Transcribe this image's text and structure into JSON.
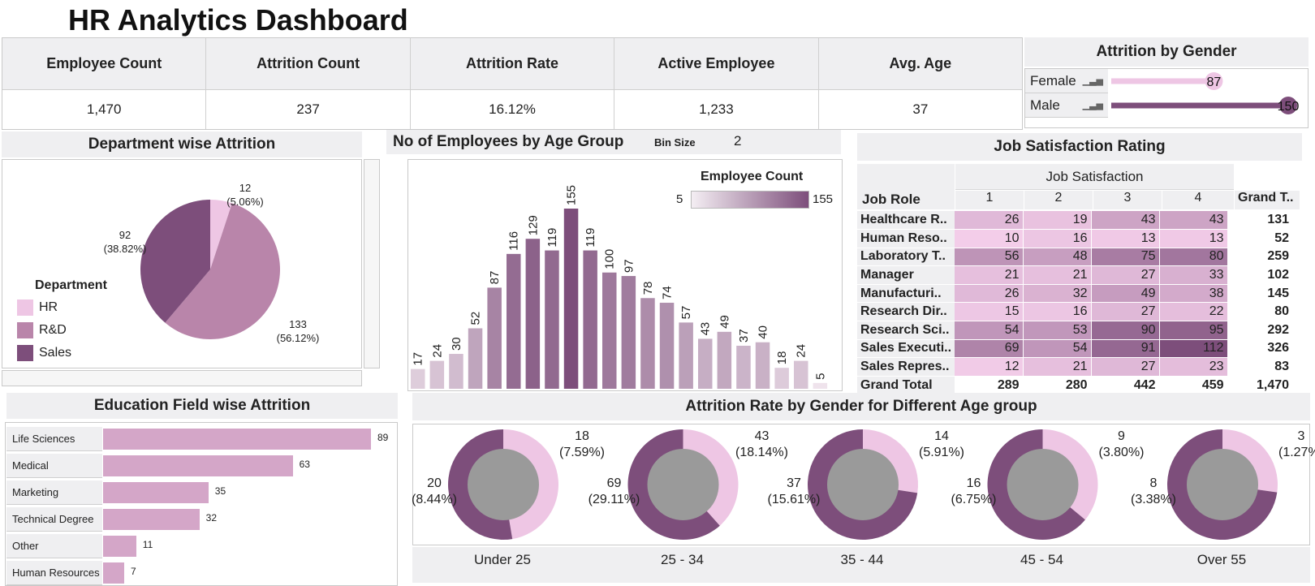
{
  "title": "HR Analytics Dashboard",
  "kpis": [
    {
      "label": "Employee Count",
      "value": "1,470"
    },
    {
      "label": "Attrition Count",
      "value": "237"
    },
    {
      "label": "Attrition Rate",
      "value": "16.12%"
    },
    {
      "label": "Active Employee",
      "value": "1,233"
    },
    {
      "label": "Avg. Age",
      "value": "37"
    }
  ],
  "gender_attrition": {
    "title": "Attrition by Gender",
    "rows": [
      {
        "label": "Female",
        "value": 87,
        "color": "#eec6e4"
      },
      {
        "label": "Male",
        "value": 150,
        "color": "#7d4e7b"
      }
    ],
    "max": 150
  },
  "department": {
    "title": "Department wise Attrition",
    "legend_title": "Department",
    "slices": [
      {
        "name": "HR",
        "value": 12,
        "pct": "(5.06%)",
        "color": "#eec6e4"
      },
      {
        "name": "R&D",
        "value": 133,
        "pct": "(56.12%)",
        "color": "#b985aa"
      },
      {
        "name": "Sales",
        "value": 92,
        "pct": "(38.82%)",
        "color": "#7d4e7b"
      }
    ]
  },
  "age_group": {
    "title": "No of Employees by Age Group",
    "bin_label": "Bin Size",
    "bin_value": "2",
    "legend_title": "Employee Count",
    "legend_min": "5",
    "legend_max": "155",
    "values": [
      17,
      24,
      30,
      52,
      87,
      116,
      129,
      119,
      155,
      119,
      100,
      97,
      78,
      74,
      57,
      43,
      49,
      37,
      40,
      18,
      24,
      5
    ]
  },
  "job_satisfaction": {
    "title": "Job Satisfaction Rating",
    "col_group": "Job Satisfaction",
    "row_header": "Job Role",
    "columns": [
      "1",
      "2",
      "3",
      "4"
    ],
    "grand_header": "Grand T..",
    "rows": [
      {
        "role": "Healthcare R..",
        "values": [
          26,
          19,
          43,
          43
        ],
        "total": "131"
      },
      {
        "role": "Human Reso..",
        "values": [
          10,
          16,
          13,
          13
        ],
        "total": "52"
      },
      {
        "role": "Laboratory T..",
        "values": [
          56,
          48,
          75,
          80
        ],
        "total": "259"
      },
      {
        "role": "Manager",
        "values": [
          21,
          21,
          27,
          33
        ],
        "total": "102"
      },
      {
        "role": "Manufacturi..",
        "values": [
          26,
          32,
          49,
          38
        ],
        "total": "145"
      },
      {
        "role": "Research Dir..",
        "values": [
          15,
          16,
          27,
          22
        ],
        "total": "80"
      },
      {
        "role": "Research Sci..",
        "values": [
          54,
          53,
          90,
          95
        ],
        "total": "292"
      },
      {
        "role": "Sales Executi..",
        "values": [
          69,
          54,
          91,
          112
        ],
        "total": "326"
      },
      {
        "role": "Sales Repres..",
        "values": [
          12,
          21,
          27,
          23
        ],
        "total": "83"
      }
    ],
    "grand_label": "Grand Total",
    "grand_values": [
      "289",
      "280",
      "442",
      "459"
    ],
    "grand_total": "1,470"
  },
  "education": {
    "title": "Education Field wise Attrition",
    "items": [
      {
        "label": "Life Sciences",
        "value": 89
      },
      {
        "label": "Medical",
        "value": 63
      },
      {
        "label": "Marketing",
        "value": 35
      },
      {
        "label": "Technical Degree",
        "value": 32
      },
      {
        "label": "Other",
        "value": 11
      },
      {
        "label": "Human Resources",
        "value": 7
      }
    ]
  },
  "age_gender": {
    "title": "Attrition Rate by Gender for Different Age group",
    "groups": [
      {
        "label": "Under 25",
        "female": 18,
        "female_pct": "(7.59%)",
        "male": 20,
        "male_pct": "(8.44%)"
      },
      {
        "label": "25 - 34",
        "female": 43,
        "female_pct": "(18.14%)",
        "male": 69,
        "male_pct": "(29.11%)"
      },
      {
        "label": "35 - 44",
        "female": 14,
        "female_pct": "(5.91%)",
        "male": 37,
        "male_pct": "(15.61%)"
      },
      {
        "label": "45 - 54",
        "female": 9,
        "female_pct": "(3.80%)",
        "male": 16,
        "male_pct": "(6.75%)"
      },
      {
        "label": "Over 55",
        "female": 3,
        "female_pct": "(1.27%)",
        "male": 8,
        "male_pct": "(3.38%)"
      }
    ]
  },
  "chart_data": [
    {
      "type": "pie",
      "title": "Department wise Attrition",
      "categories": [
        "HR",
        "R&D",
        "Sales"
      ],
      "values": [
        12,
        133,
        92
      ]
    },
    {
      "type": "bar",
      "title": "No of Employees by Age Group",
      "values": [
        17,
        24,
        30,
        52,
        87,
        116,
        129,
        119,
        155,
        119,
        100,
        97,
        78,
        74,
        57,
        43,
        49,
        37,
        40,
        18,
        24,
        5
      ]
    },
    {
      "type": "bar",
      "title": "Education Field wise Attrition",
      "categories": [
        "Life Sciences",
        "Medical",
        "Marketing",
        "Technical Degree",
        "Other",
        "Human Resources"
      ],
      "values": [
        89,
        63,
        35,
        32,
        11,
        7
      ]
    },
    {
      "type": "bar",
      "title": "Attrition by Gender",
      "categories": [
        "Female",
        "Male"
      ],
      "values": [
        87,
        150
      ]
    },
    {
      "type": "pie",
      "title": "Attrition Rate by Gender for Different Age group",
      "categories": [
        "Under 25",
        "25 - 34",
        "35 - 44",
        "45 - 54",
        "Over 55"
      ],
      "series": [
        {
          "values": [
            18,
            43,
            14,
            9,
            3
          ]
        },
        {
          "values": [
            20,
            69,
            37,
            16,
            8
          ]
        }
      ]
    }
  ]
}
